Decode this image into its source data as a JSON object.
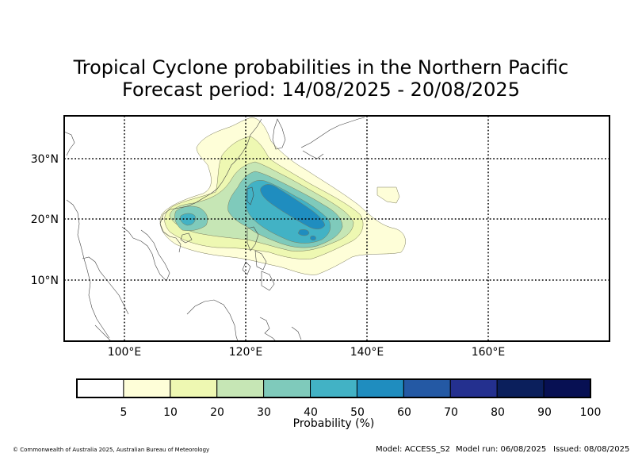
{
  "title": {
    "line1": "Tropical Cyclone probabilities in the Northern Pacific",
    "line2": "Forecast period: 14/08/2025 - 20/08/2025"
  },
  "map": {
    "lat_labels": [
      "30°N",
      "20°N",
      "10°N"
    ],
    "lon_labels": [
      "100°E",
      "120°E",
      "140°E",
      "160°E"
    ],
    "lon_range": [
      90,
      180
    ],
    "lat_range": [
      0,
      37
    ],
    "gridlines": "dotted"
  },
  "colorbar": {
    "label": "Probability (%)",
    "ticks": [
      "5",
      "10",
      "20",
      "30",
      "40",
      "50",
      "60",
      "70",
      "80",
      "90",
      "100"
    ],
    "colors": [
      "#ffffff",
      "#fefed8",
      "#eef8b2",
      "#c6e6b5",
      "#7fcabb",
      "#42b2c5",
      "#1f8dbf",
      "#2459a4",
      "#24308f",
      "#0b1f5c",
      "#071053"
    ]
  },
  "footer": {
    "copyright": "© Commonwealth of Australia 2025, Australian Bureau of Meteorology",
    "model": "Model: ACCESS_S2",
    "model_run": "Model run: 06/08/2025",
    "issued": "Issued: 08/08/2025"
  }
}
